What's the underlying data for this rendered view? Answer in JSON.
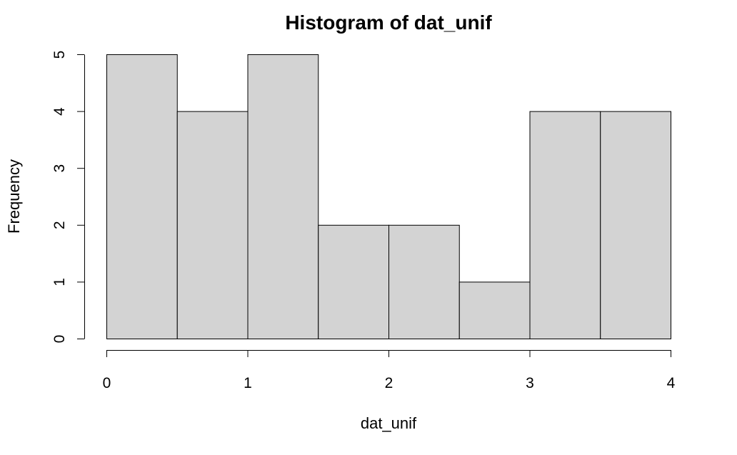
{
  "chart_data": {
    "type": "bar",
    "title": "Histogram of dat_unif",
    "xlabel": "dat_unif",
    "ylabel": "Frequency",
    "bins": [
      {
        "start": 0.0,
        "end": 0.5,
        "count": 5
      },
      {
        "start": 0.5,
        "end": 1.0,
        "count": 4
      },
      {
        "start": 1.0,
        "end": 1.5,
        "count": 5
      },
      {
        "start": 1.5,
        "end": 2.0,
        "count": 2
      },
      {
        "start": 2.0,
        "end": 2.5,
        "count": 2
      },
      {
        "start": 2.5,
        "end": 3.0,
        "count": 1
      },
      {
        "start": 3.0,
        "end": 3.5,
        "count": 4
      },
      {
        "start": 3.5,
        "end": 4.0,
        "count": 4
      }
    ],
    "xlim": [
      0,
      4
    ],
    "ylim": [
      0,
      5
    ],
    "x_ticks": [
      "0",
      "1",
      "2",
      "3",
      "4"
    ],
    "y_ticks": [
      "0",
      "1",
      "2",
      "3",
      "4",
      "5"
    ],
    "bar_fill": "#d3d3d3",
    "bar_stroke": "#000000",
    "grid": false,
    "legend": "none"
  }
}
